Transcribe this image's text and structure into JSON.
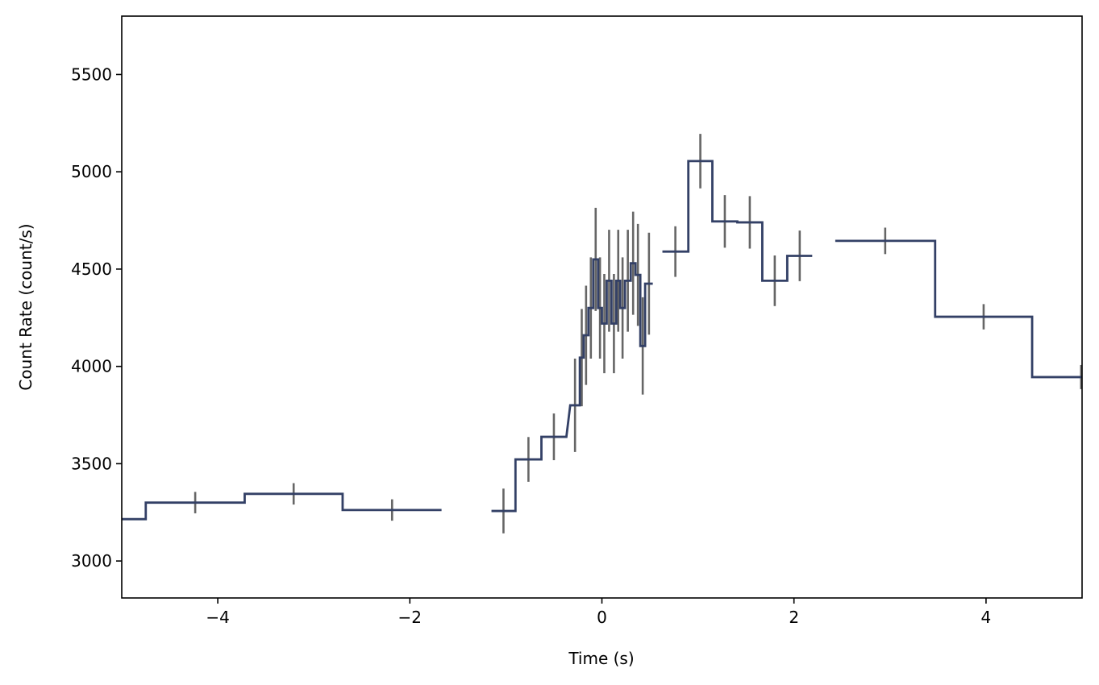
{
  "chart_data": {
    "type": "line",
    "title": "",
    "xlabel": "Time (s)",
    "ylabel": "Count Rate (count/s)",
    "xlim": [
      -5,
      5
    ],
    "ylim": [
      2810,
      5800
    ],
    "xticks": [
      -4,
      -2,
      0,
      2,
      4
    ],
    "xtick_labels": [
      "−4",
      "−2",
      "0",
      "2",
      "4"
    ],
    "yticks": [
      3000,
      3500,
      4000,
      4500,
      5000,
      5500
    ],
    "ytick_labels": [
      "3000",
      "3500",
      "4000",
      "4500",
      "5000",
      "5500"
    ],
    "grid": false,
    "legend": "none",
    "colors": {
      "step": "#334066",
      "errorbar": "#666666"
    },
    "series": [
      {
        "style": "step",
        "bins": [
          {
            "x0": -5.75,
            "x1": -4.75,
            "y": 3215,
            "err": 55
          },
          {
            "x0": -4.75,
            "x1": -3.72,
            "y": 3300,
            "err": 55
          },
          {
            "x0": -3.72,
            "x1": -2.7,
            "y": 3345,
            "err": 55
          },
          {
            "x0": -2.7,
            "x1": -1.67,
            "y": 3262,
            "err": 55
          }
        ]
      },
      {
        "style": "step",
        "bins": [
          {
            "x0": -1.15,
            "x1": -0.9,
            "y": 3257,
            "err": 115
          },
          {
            "x0": -0.9,
            "x1": -0.63,
            "y": 3522,
            "err": 115
          },
          {
            "x0": -0.63,
            "x1": -0.37,
            "y": 3638,
            "err": 120
          },
          {
            "x0": -0.33,
            "x1": -0.23,
            "y": 3800,
            "err": 240
          },
          {
            "x0": -0.23,
            "x1": -0.19,
            "y": 4045,
            "err": 250
          },
          {
            "x0": -0.19,
            "x1": -0.14,
            "y": 4160,
            "err": 255
          },
          {
            "x0": -0.14,
            "x1": -0.09,
            "y": 4300,
            "err": 260
          },
          {
            "x0": -0.09,
            "x1": -0.04,
            "y": 4550,
            "err": 265
          },
          {
            "x0": -0.04,
            "x1": 0.0,
            "y": 4300,
            "err": 260
          },
          {
            "x0": 0.0,
            "x1": 0.05,
            "y": 4220,
            "err": 255
          },
          {
            "x0": 0.05,
            "x1": 0.1,
            "y": 4440,
            "err": 262
          },
          {
            "x0": 0.1,
            "x1": 0.15,
            "y": 4220,
            "err": 255
          },
          {
            "x0": 0.15,
            "x1": 0.19,
            "y": 4440,
            "err": 262
          },
          {
            "x0": 0.19,
            "x1": 0.24,
            "y": 4300,
            "err": 260
          },
          {
            "x0": 0.24,
            "x1": 0.3,
            "y": 4440,
            "err": 262
          },
          {
            "x0": 0.3,
            "x1": 0.35,
            "y": 4530,
            "err": 265
          },
          {
            "x0": 0.35,
            "x1": 0.4,
            "y": 4470,
            "err": 262
          },
          {
            "x0": 0.4,
            "x1": 0.45,
            "y": 4105,
            "err": 250
          },
          {
            "x0": 0.45,
            "x1": 0.53,
            "y": 4425,
            "err": 262
          }
        ]
      },
      {
        "style": "step",
        "bins": [
          {
            "x0": 0.63,
            "x1": 0.9,
            "y": 4590,
            "err": 130
          },
          {
            "x0": 0.9,
            "x1": 1.15,
            "y": 5055,
            "err": 140
          },
          {
            "x0": 1.15,
            "x1": 1.41,
            "y": 4745,
            "err": 135
          },
          {
            "x0": 1.41,
            "x1": 1.67,
            "y": 4740,
            "err": 135
          },
          {
            "x0": 1.67,
            "x1": 1.93,
            "y": 4440,
            "err": 130
          },
          {
            "x0": 1.93,
            "x1": 2.19,
            "y": 4568,
            "err": 130
          }
        ]
      },
      {
        "style": "step",
        "bins": [
          {
            "x0": 2.43,
            "x1": 3.47,
            "y": 4645,
            "err": 68
          },
          {
            "x0": 3.47,
            "x1": 4.48,
            "y": 4255,
            "err": 65
          },
          {
            "x0": 4.48,
            "x1": 5.5,
            "y": 3945,
            "err": 62
          }
        ]
      }
    ]
  }
}
